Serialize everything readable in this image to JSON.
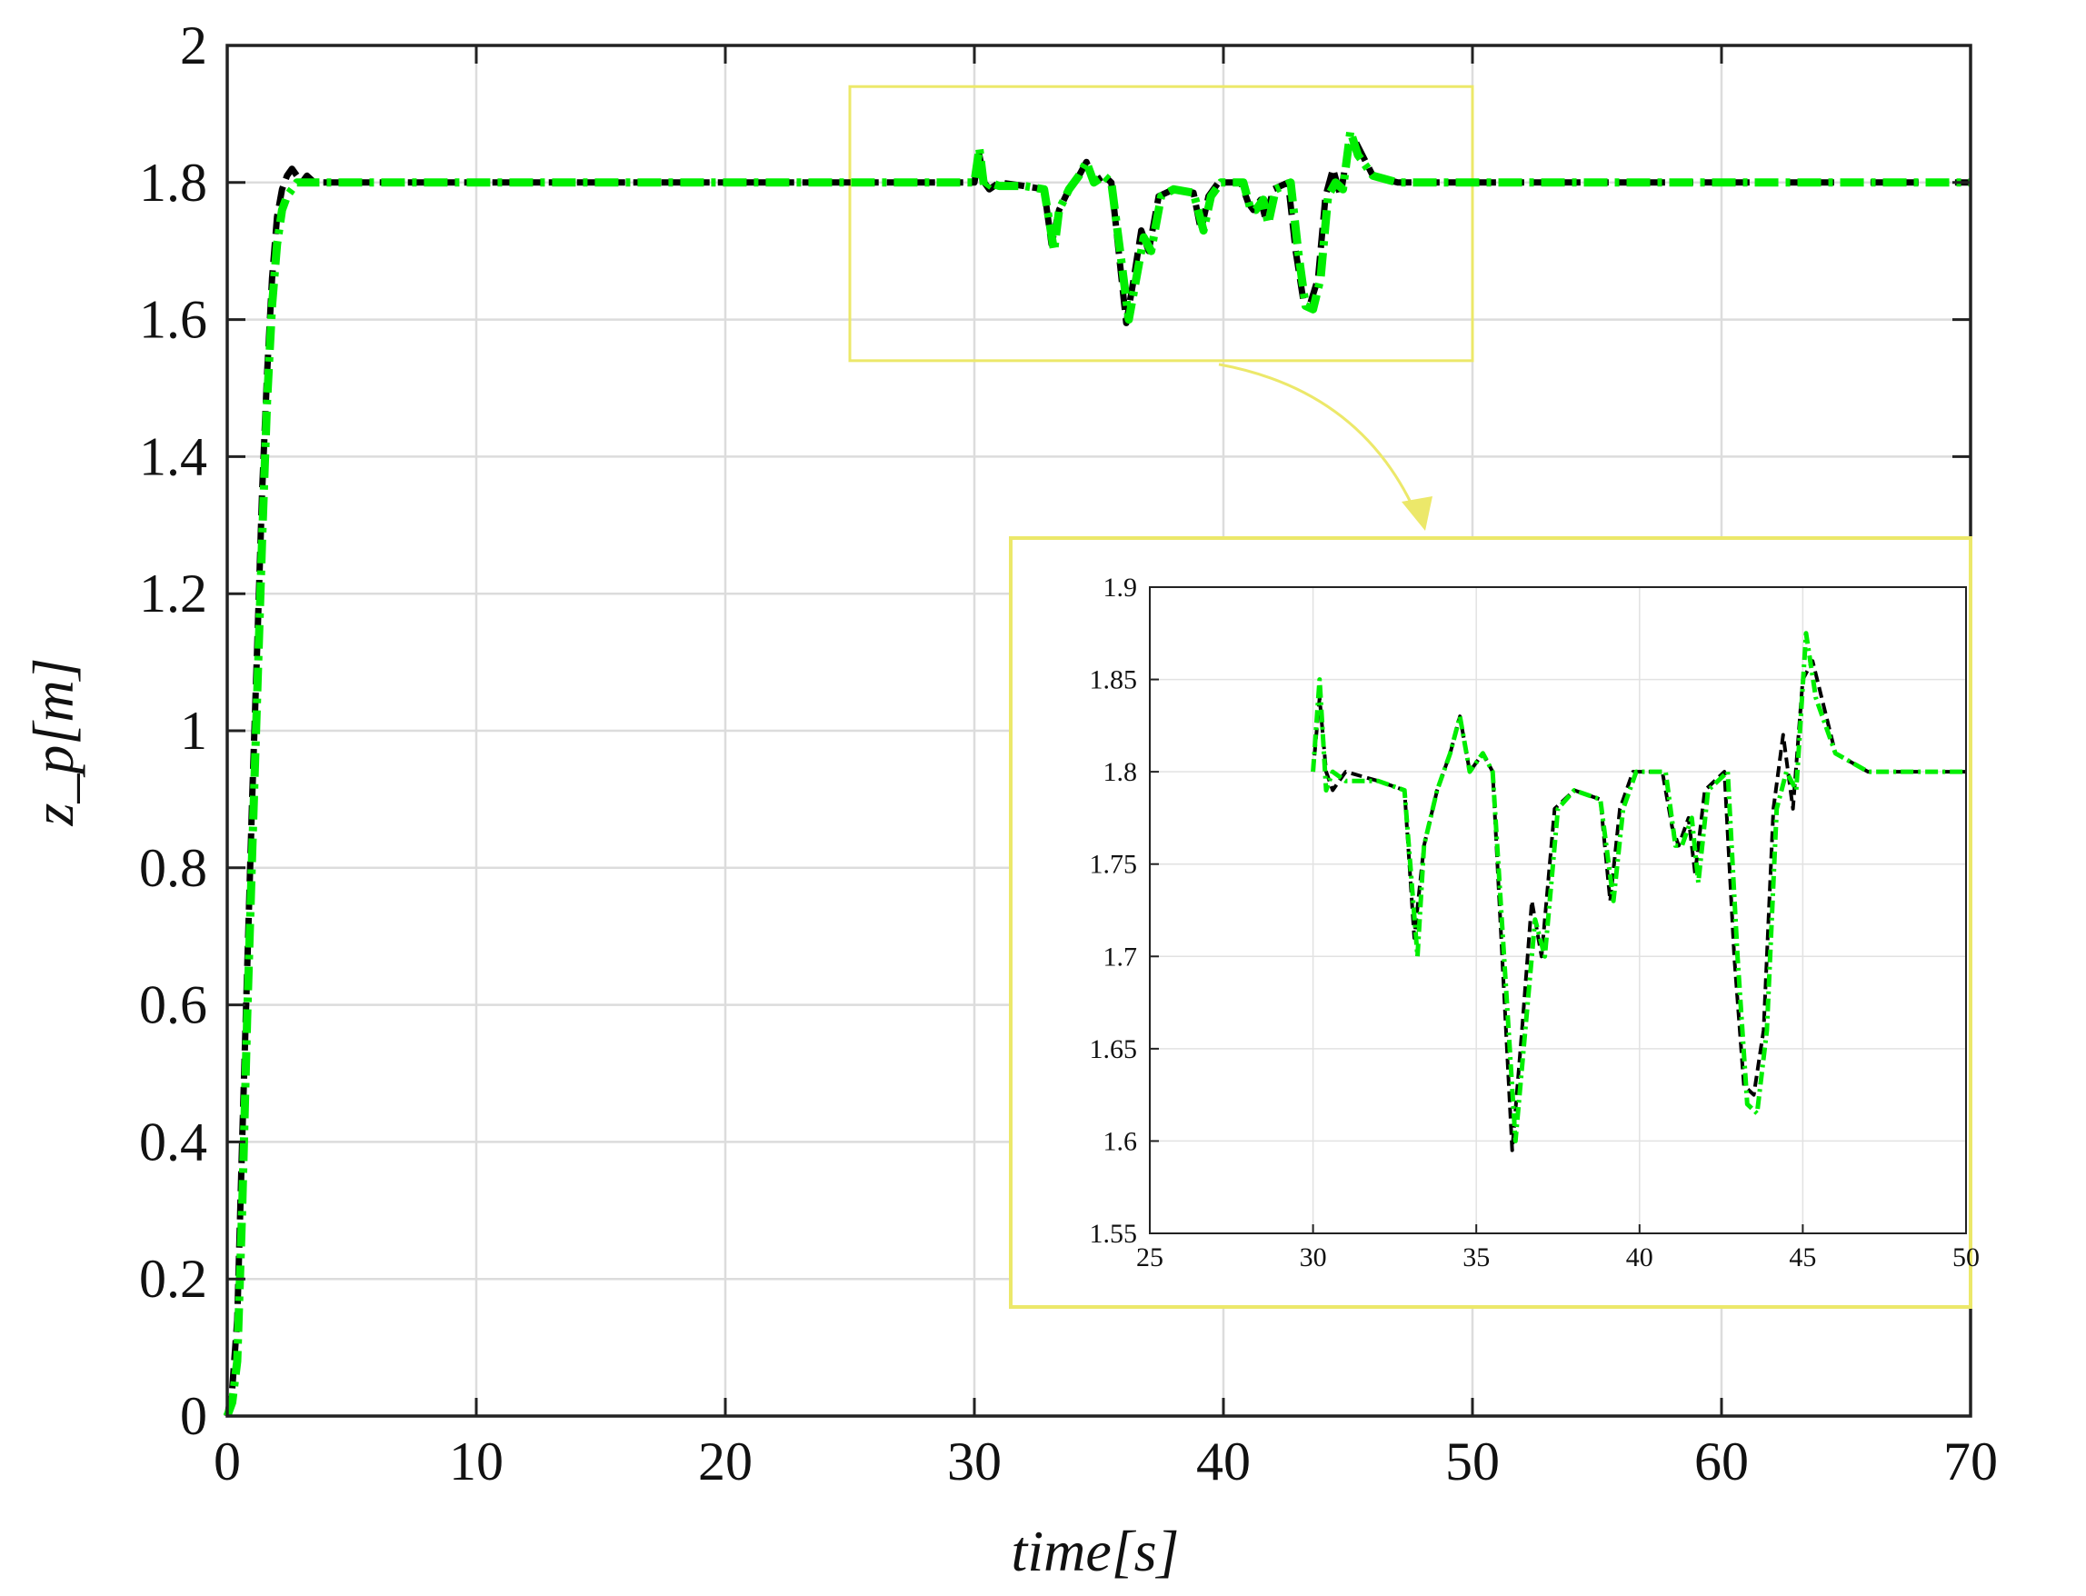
{
  "chart_data": [
    {
      "type": "line",
      "panel": "main",
      "xlabel": "time[s]",
      "ylabel": "z_p[m]",
      "xlim": [
        0,
        70
      ],
      "ylim": [
        0,
        2
      ],
      "xticks": [
        0,
        10,
        20,
        30,
        40,
        50,
        60,
        70
      ],
      "yticks": [
        0,
        0.2,
        0.4,
        0.6,
        0.8,
        1,
        1.2,
        1.4,
        1.6,
        1.8,
        2
      ],
      "xtick_labels": [
        "0",
        "10",
        "20",
        "30",
        "40",
        "50",
        "60",
        "70"
      ],
      "ytick_labels": [
        "0",
        "0.2",
        "0.4",
        "0.6",
        "0.8",
        "1",
        "1.2",
        "1.4",
        "1.6",
        "1.8",
        "2"
      ],
      "grid": true,
      "series": [
        {
          "line_style": "dashed",
          "color": "#000000",
          "x": [
            0,
            0.2,
            0.4,
            0.6,
            0.8,
            1.0,
            1.2,
            1.4,
            1.6,
            1.8,
            2.0,
            2.2,
            2.4,
            2.6,
            2.8,
            3.0,
            3.2,
            3.5,
            3.8,
            4.0,
            4.5,
            5,
            6,
            10,
            20,
            30,
            30.2,
            30.4,
            30.6,
            31,
            32,
            32.8,
            33.1,
            33.4,
            33.8,
            34.2,
            34.5,
            34.8,
            35.2,
            35.5,
            36.1,
            36.4,
            36.7,
            37,
            37.4,
            38,
            38.8,
            39.1,
            39.4,
            39.8,
            40.3,
            40.7,
            41,
            41.2,
            41.5,
            41.7,
            42,
            42.6,
            42.9,
            43.2,
            43.5,
            43.8,
            44.1,
            44.4,
            44.7,
            45.0,
            45.3,
            46,
            47,
            50,
            60,
            70
          ],
          "y": [
            0,
            0.04,
            0.14,
            0.4,
            0.65,
            0.9,
            1.12,
            1.35,
            1.52,
            1.66,
            1.75,
            1.79,
            1.81,
            1.82,
            1.81,
            1.8,
            1.81,
            1.8,
            1.8,
            1.8,
            1.8,
            1.8,
            1.8,
            1.8,
            1.8,
            1.8,
            1.84,
            1.8,
            1.79,
            1.8,
            1.795,
            1.79,
            1.71,
            1.76,
            1.79,
            1.81,
            1.83,
            1.8,
            1.81,
            1.8,
            1.595,
            1.66,
            1.73,
            1.7,
            1.78,
            1.79,
            1.785,
            1.73,
            1.78,
            1.8,
            1.8,
            1.8,
            1.77,
            1.76,
            1.775,
            1.745,
            1.79,
            1.8,
            1.7,
            1.63,
            1.625,
            1.66,
            1.78,
            1.82,
            1.78,
            1.85,
            1.86,
            1.81,
            1.8,
            1.8,
            1.8,
            1.8
          ]
        },
        {
          "line_style": "dash-dot",
          "color": "#00ee00",
          "x": [
            0,
            0.2,
            0.4,
            0.6,
            0.8,
            1.0,
            1.2,
            1.4,
            1.6,
            1.8,
            2.0,
            2.2,
            2.4,
            2.6,
            2.8,
            3.0,
            3.2,
            3.5,
            3.8,
            4.0,
            4.5,
            5,
            6,
            10,
            20,
            30,
            30.2,
            30.4,
            30.6,
            31,
            32,
            32.8,
            33.2,
            33.4,
            33.8,
            34.2,
            34.5,
            34.8,
            35.2,
            35.5,
            36.2,
            36.5,
            36.8,
            37.1,
            37.5,
            38,
            38.8,
            39.2,
            39.5,
            39.9,
            40.4,
            40.8,
            41.1,
            41.3,
            41.6,
            41.8,
            42.1,
            42.7,
            43.0,
            43.3,
            43.6,
            43.9,
            44.2,
            44.5,
            44.8,
            45.1,
            45.4,
            46,
            47,
            50,
            60,
            70
          ],
          "y": [
            0,
            0.02,
            0.08,
            0.3,
            0.58,
            0.82,
            1.05,
            1.28,
            1.48,
            1.62,
            1.71,
            1.76,
            1.78,
            1.79,
            1.8,
            1.8,
            1.8,
            1.8,
            1.8,
            1.8,
            1.8,
            1.8,
            1.8,
            1.8,
            1.8,
            1.8,
            1.85,
            1.79,
            1.8,
            1.795,
            1.795,
            1.79,
            1.7,
            1.76,
            1.79,
            1.81,
            1.83,
            1.8,
            1.81,
            1.8,
            1.6,
            1.66,
            1.72,
            1.7,
            1.78,
            1.79,
            1.785,
            1.73,
            1.78,
            1.8,
            1.8,
            1.8,
            1.76,
            1.76,
            1.775,
            1.74,
            1.79,
            1.8,
            1.7,
            1.62,
            1.615,
            1.66,
            1.78,
            1.8,
            1.79,
            1.875,
            1.84,
            1.81,
            1.8,
            1.8,
            1.8,
            1.8
          ]
        }
      ],
      "highlight_box": {
        "x": [
          25,
          50
        ],
        "y": [
          1.54,
          1.94
        ],
        "color": "#ece86a"
      }
    },
    {
      "type": "line",
      "panel": "inset",
      "xlim": [
        25,
        50
      ],
      "ylim": [
        1.55,
        1.9
      ],
      "xticks": [
        25,
        30,
        35,
        40,
        45,
        50
      ],
      "yticks": [
        1.55,
        1.6,
        1.65,
        1.7,
        1.75,
        1.8,
        1.85,
        1.9
      ],
      "xtick_labels": [
        "25",
        "30",
        "35",
        "40",
        "45",
        "50"
      ],
      "ytick_labels": [
        "1.55",
        "1.6",
        "1.65",
        "1.7",
        "1.75",
        "1.8",
        "1.85",
        "1.9"
      ],
      "grid": true,
      "frame_color": "#ece86a"
    }
  ]
}
